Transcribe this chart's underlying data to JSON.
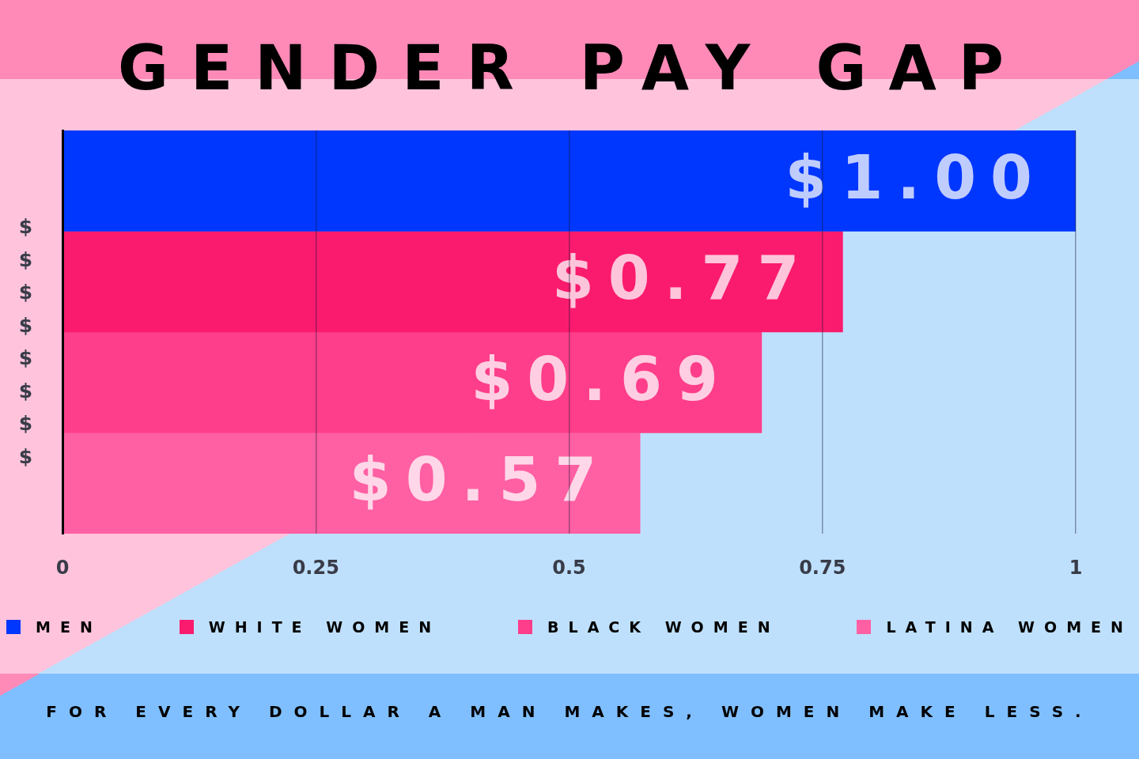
{
  "chart_data": {
    "type": "bar",
    "orientation": "horizontal",
    "title": "GENDER PAY GAP",
    "ylabel": "$$$$$$$$",
    "categories": [
      null
    ],
    "series": [
      {
        "name": "MEN",
        "color": "#0037ff",
        "values": [
          1.0
        ],
        "value_labels": [
          "$1.00"
        ]
      },
      {
        "name": "WHITE WOMEN",
        "color": "#fb1b6e",
        "values": [
          0.77
        ],
        "value_labels": [
          "$0.77"
        ]
      },
      {
        "name": "BLACK WOMEN",
        "color": "#fe3e8a",
        "values": [
          0.69
        ],
        "value_labels": [
          "$0.69"
        ]
      },
      {
        "name": "LATINA WOMEN",
        "color": "#ff5fa3",
        "values": [
          0.57
        ],
        "value_labels": [
          "$0.57"
        ]
      }
    ],
    "xlim": [
      0,
      1
    ],
    "xticks": [
      0,
      0.25,
      0.5,
      0.75,
      1
    ],
    "grid": "x",
    "legend": "bottom",
    "annotations": [
      "FOR EVERY DOLLAR A MAN MAKES, WOMEN MAKE LESS."
    ]
  }
}
